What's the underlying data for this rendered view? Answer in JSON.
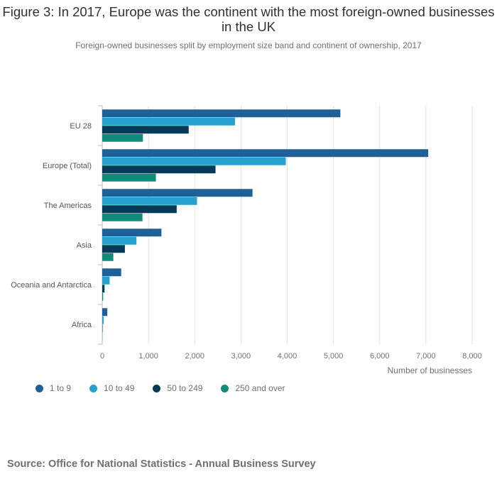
{
  "title": "Figure 3: In 2017, Europe was the continent with the most foreign-owned businesses in the UK",
  "subtitle": "Foreign-owned businesses split by employment size band and continent of ownership, 2017",
  "source": "Source: Office for National Statistics - Annual Business Survey",
  "chart_data": {
    "type": "bar",
    "orientation": "horizontal",
    "categories": [
      "EU 28",
      "Europe (Total)",
      "The Americas",
      "Asia",
      "Oceania and Antarctica",
      "Africa"
    ],
    "series": [
      {
        "name": "1 to 9",
        "color": "#206095",
        "values": [
          5150,
          7050,
          3250,
          1280,
          410,
          110
        ]
      },
      {
        "name": "10 to 49",
        "color": "#27a0cc",
        "values": [
          2870,
          3970,
          2050,
          740,
          160,
          30
        ]
      },
      {
        "name": "50 to 249",
        "color": "#003c57",
        "values": [
          1870,
          2450,
          1610,
          490,
          50,
          8
        ]
      },
      {
        "name": "250 and over",
        "color": "#118c7b",
        "values": [
          880,
          1160,
          870,
          240,
          20,
          4
        ]
      }
    ],
    "xlim": [
      0,
      8000
    ],
    "xticks": [
      0,
      1000,
      2000,
      3000,
      4000,
      5000,
      6000,
      7000,
      8000
    ],
    "xtick_labels": [
      "0",
      "1,000",
      "2,000",
      "3,000",
      "4,000",
      "5,000",
      "6,000",
      "7,000",
      "8,000"
    ],
    "xlabel": "Number of businesses",
    "ylabel": "",
    "grid": "vertical",
    "legend_position": "bottom-left"
  }
}
